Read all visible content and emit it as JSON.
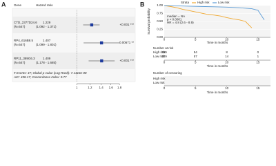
{
  "panel_a_label": "A",
  "panel_b_label": "B",
  "chart_data": [
    {
      "type": "forest",
      "header": [
        "Gene",
        "Hazard ratio"
      ],
      "rows": [
        {
          "name": "CTD_2377D24.6",
          "n": "(N=547)",
          "value": 1.229,
          "ci": [
            1.092,
            1.371
          ],
          "ci_label": "(1.092 - 1.371)",
          "p": "<0.001 ***"
        },
        {
          "name": "RP4_616B8.5",
          "n": "(N=547)",
          "value": 1.407,
          "ci": [
            1.099,
            1.801
          ],
          "ci_label": "(1.099 - 1.801)",
          "p": "0.00671 **"
        },
        {
          "name": "RP11_389G6.3",
          "n": "(N=547)",
          "value": 1.409,
          "ci": [
            1.178,
            1.685
          ],
          "ci_label": "(1.178 - 1.685)",
          "p": "<0.001 ***"
        }
      ],
      "footer": [
        "# Events: 47; Global p-value (Log-Rank): 7.1416e-08",
        "AIC: 438.17; Concordance Index: 0.77"
      ],
      "log_scale": true,
      "xlim": [
        0.97,
        1.85
      ],
      "xticks": [
        1,
        1.2,
        1.4,
        1.6,
        1.8
      ],
      "reference": 1,
      "color": "#1f3c9e"
    },
    {
      "type": "survival",
      "ylabel": "Survival probability",
      "xlabel": "Time in months",
      "legend_title": "Strata",
      "annotations": [
        "median = NA",
        "p < 0.0001",
        "HR = 4.8 (2.6 - 8.9)"
      ],
      "ylim": [
        0,
        1
      ],
      "yticks": [
        {
          "value": 0,
          "label": "0.00"
        },
        {
          "value": 0.25,
          "label": "0.25"
        },
        {
          "value": 0.5,
          "label": "0.50"
        },
        {
          "value": 0.75,
          "label": "0.75"
        },
        {
          "value": 1,
          "label": "1.00"
        }
      ],
      "xlim": [
        0,
        17
      ],
      "xticks": [
        0,
        5,
        10,
        15
      ],
      "series": [
        {
          "name": "High risk",
          "color": "#f0a830",
          "x": [
            0,
            1,
            2,
            3,
            4,
            5,
            6,
            7,
            8,
            9,
            10,
            11,
            12,
            13,
            14
          ],
          "values": [
            1,
            0.97,
            0.93,
            0.88,
            0.84,
            0.8,
            0.76,
            0.72,
            0.7,
            0.67,
            0.62,
            0.58,
            0.55,
            0.5,
            0.3
          ],
          "at_risk": [
            239,
            54,
            8,
            0
          ]
        },
        {
          "name": "Low risk",
          "color": "#5b9bd5",
          "x": [
            0,
            2,
            4,
            6,
            8,
            10,
            12,
            14,
            15,
            16
          ],
          "values": [
            1,
            0.99,
            0.98,
            0.97,
            0.96,
            0.95,
            0.93,
            0.9,
            0.85,
            0.55
          ],
          "at_risk": [
            239,
            57,
            14,
            1
          ]
        }
      ],
      "risk_title": "Number at risk",
      "censoring_title": "Number of censoring"
    }
  ]
}
